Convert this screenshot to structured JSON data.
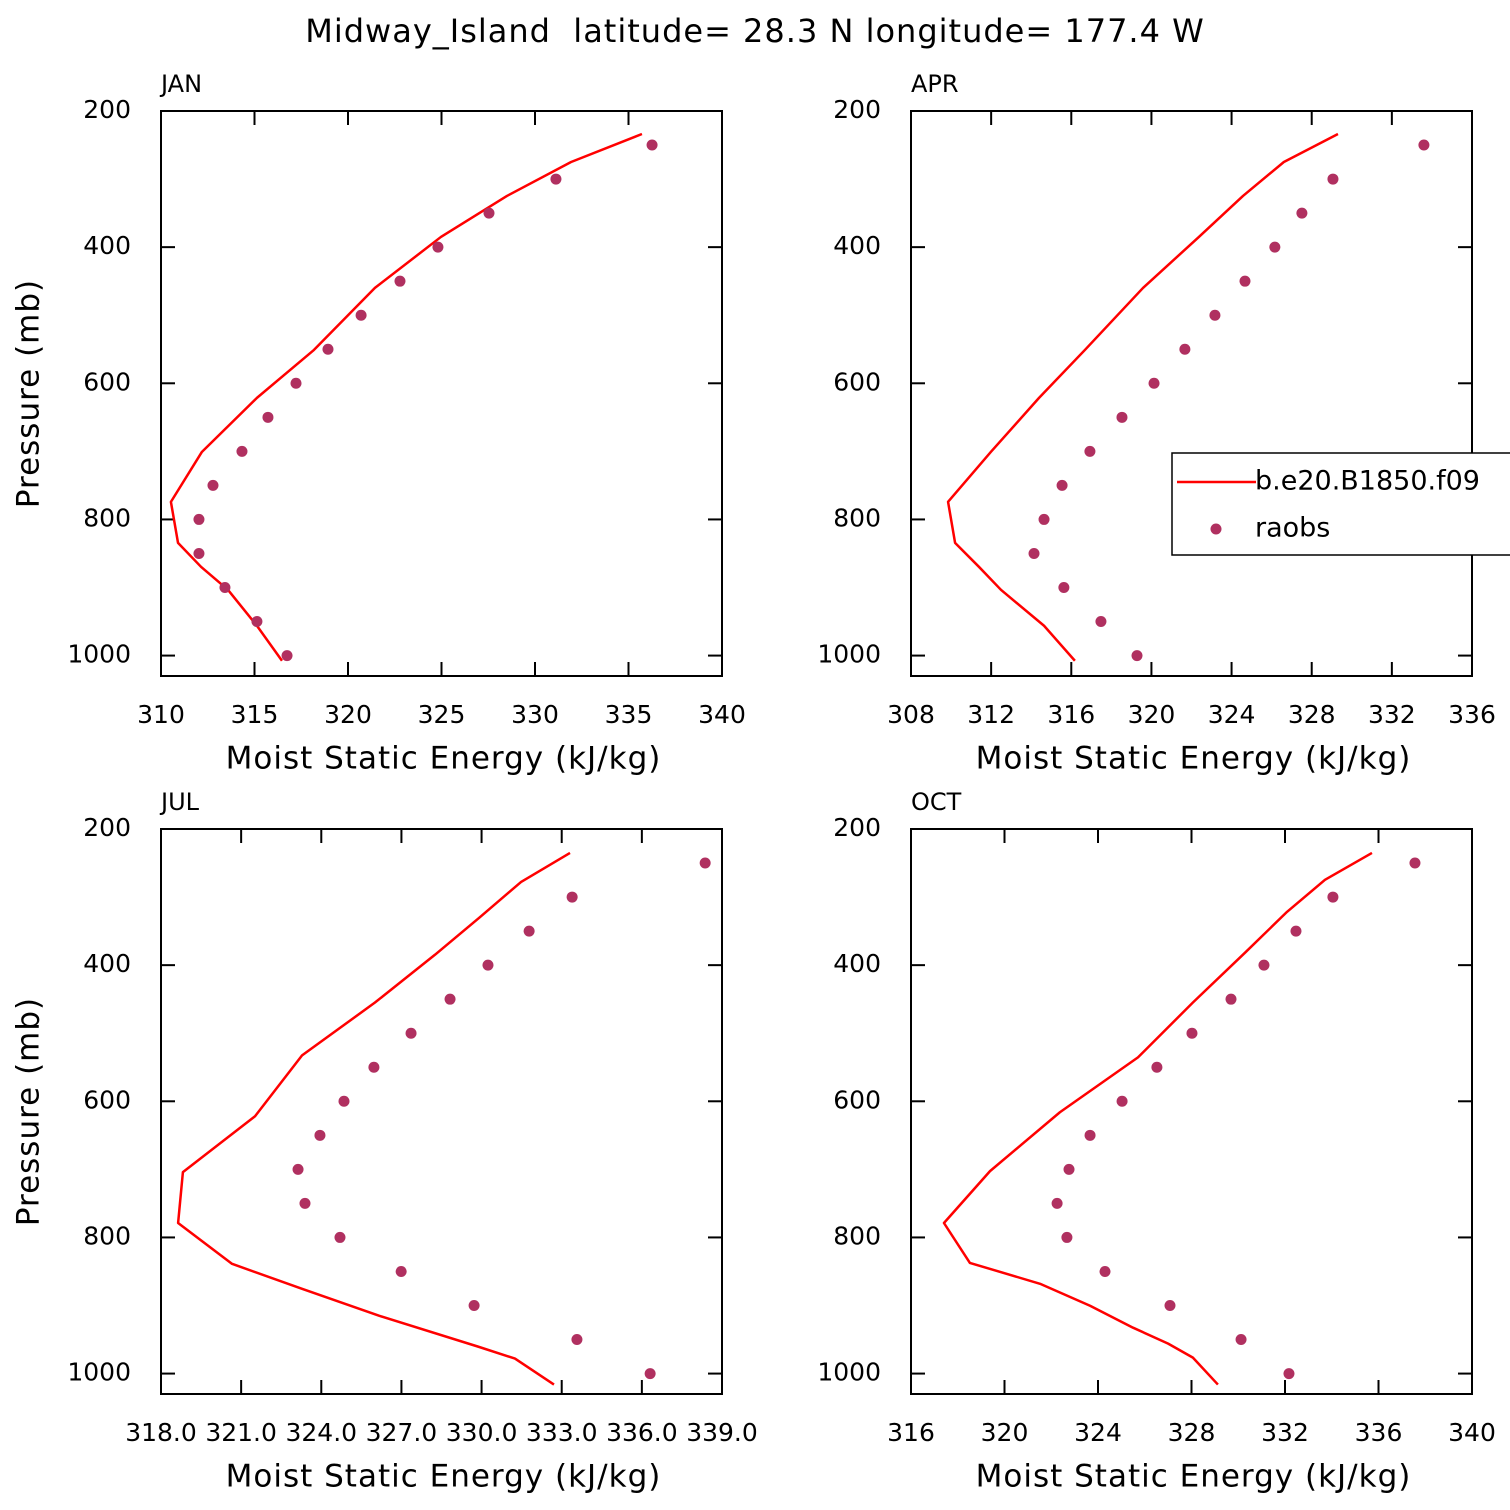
{
  "title": "Midway_Island  latitude= 28.3 N longitude= 177.4 W",
  "chart_data": [
    {
      "type": "profile",
      "subtitle": "JAN",
      "xlabel": "Moist Static Energy (kJ/kg)",
      "ylabel": "Pressure (mb)",
      "xlim": [
        310,
        340
      ],
      "xticks": [
        310,
        315,
        320,
        325,
        330,
        335,
        340
      ],
      "ylim": [
        200,
        1030
      ],
      "yticks": [
        200,
        400,
        600,
        800,
        1000
      ],
      "y_inverted": true,
      "series": [
        {
          "name": "b.e20.B1850.f09",
          "color": "#ff0000",
          "style": "line",
          "values": [
            335.72,
            331.93,
            328.5,
            324.97,
            321.44,
            318.18,
            315.13,
            312.19,
            310.53,
            310.91,
            312.14,
            313.58,
            315.13,
            316.47
          ],
          "pressure": [
            233.8,
            274.9,
            324.8,
            385.0,
            459.9,
            551.0,
            621.4,
            700.7,
            774.2,
            834.4,
            869.6,
            903.4,
            956.2,
            1007.6
          ]
        },
        {
          "name": "raobs",
          "color": "#b03060",
          "style": "dots",
          "values": [
            336.26,
            331.12,
            327.54,
            324.81,
            322.78,
            320.7,
            318.93,
            317.22,
            315.72,
            314.33,
            312.78,
            312.03,
            312.03,
            313.42,
            315.13,
            316.74
          ],
          "pressure": [
            250,
            300,
            350,
            400,
            450,
            500,
            550,
            600,
            650,
            700,
            750,
            800,
            850,
            900,
            950,
            1000
          ]
        }
      ]
    },
    {
      "type": "profile",
      "subtitle": "APR",
      "xlabel": "Moist Static Energy (kJ/kg)",
      "legend": true,
      "xlim": [
        308,
        336
      ],
      "xticks": [
        308,
        312,
        316,
        320,
        324,
        328,
        332,
        336
      ],
      "ylim": [
        200,
        1030
      ],
      "yticks": [
        200,
        400,
        600,
        800,
        1000
      ],
      "y_inverted": true,
      "series": [
        {
          "name": "b.e20.B1850.f09",
          "color": "#ff0000",
          "style": "line",
          "values": [
            329.31,
            326.61,
            324.57,
            322.37,
            319.58,
            316.68,
            314.39,
            311.99,
            309.85,
            310.2,
            311.39,
            312.49,
            314.64,
            316.18
          ],
          "pressure": [
            233.8,
            274.9,
            324.8,
            385.0,
            459.9,
            551.0,
            621.4,
            700.7,
            774.2,
            834.4,
            869.6,
            903.4,
            956.2,
            1007.6
          ]
        },
        {
          "name": "raobs",
          "color": "#b03060",
          "style": "dots",
          "values": [
            333.6,
            329.06,
            327.51,
            326.16,
            324.67,
            323.17,
            321.67,
            320.13,
            318.53,
            316.93,
            315.54,
            314.64,
            314.14,
            315.63,
            317.48,
            319.28
          ],
          "pressure": [
            250,
            300,
            350,
            400,
            450,
            500,
            550,
            600,
            650,
            700,
            750,
            800,
            850,
            900,
            950,
            1000
          ]
        }
      ]
    },
    {
      "type": "profile",
      "subtitle": "JUL",
      "xlabel": "Moist Static Energy (kJ/kg)",
      "ylabel": "Pressure (mb)",
      "xlim": [
        318,
        339
      ],
      "xticks": [
        {
          "value": 318,
          "label": "318.0"
        },
        {
          "value": 321,
          "label": "321.0"
        },
        {
          "value": 324,
          "label": "324.0"
        },
        {
          "value": 327,
          "label": "327.0"
        },
        {
          "value": 330,
          "label": "330.0"
        },
        {
          "value": 333,
          "label": "333.0"
        },
        {
          "value": 336,
          "label": "336.0"
        },
        {
          "value": 339,
          "label": "339.0"
        }
      ],
      "ylim": [
        200,
        1030
      ],
      "yticks": [
        200,
        400,
        600,
        800,
        1000
      ],
      "y_inverted": true,
      "series": [
        {
          "name": "b.e20.B1850.f09",
          "color": "#ff0000",
          "style": "line",
          "values": [
            333.31,
            331.48,
            329.91,
            328.26,
            326.01,
            323.28,
            321.52,
            318.82,
            318.64,
            320.66,
            323.28,
            326.16,
            329.87,
            331.25,
            332.71
          ],
          "pressure": [
            235.2,
            277.7,
            330.5,
            384.6,
            454.9,
            532.6,
            622.0,
            704.0,
            778.8,
            838.8,
            875.5,
            915.0,
            960.4,
            978.0,
            1016.1
          ]
        },
        {
          "name": "raobs",
          "color": "#b03060",
          "style": "dots",
          "values": [
            338.37,
            333.39,
            331.78,
            330.24,
            328.82,
            327.36,
            325.97,
            324.85,
            323.95,
            323.13,
            323.39,
            324.7,
            326.99,
            329.72,
            333.57,
            336.31
          ],
          "pressure": [
            250,
            300,
            350,
            400,
            450,
            500,
            550,
            600,
            650,
            700,
            750,
            800,
            850,
            900,
            950,
            1000
          ]
        }
      ]
    },
    {
      "type": "profile",
      "subtitle": "OCT",
      "xlabel": "Moist Static Energy (kJ/kg)",
      "xlim": [
        316,
        340
      ],
      "xticks": [
        316,
        320,
        324,
        328,
        332,
        336,
        340
      ],
      "ylim": [
        200,
        1030
      ],
      "yticks": [
        200,
        400,
        600,
        800,
        1000
      ],
      "y_inverted": true,
      "series": [
        {
          "name": "b.e20.B1850.f09",
          "color": "#ff0000",
          "style": "line",
          "values": [
            335.72,
            333.71,
            332.09,
            330.29,
            328.06,
            325.71,
            322.37,
            319.38,
            317.41,
            318.52,
            321.52,
            323.66,
            325.5,
            327.0,
            328.06,
            329.13
          ],
          "pressure": [
            235.2,
            274.7,
            321.6,
            381.7,
            454.9,
            535.5,
            616.1,
            702.6,
            778.8,
            837.4,
            868.1,
            900.4,
            932.6,
            956.0,
            976.6,
            1016.1
          ]
        },
        {
          "name": "raobs",
          "color": "#b03060",
          "style": "dots",
          "values": [
            337.56,
            334.05,
            332.47,
            331.1,
            329.69,
            328.02,
            326.52,
            325.03,
            323.66,
            322.76,
            322.25,
            322.67,
            324.3,
            327.08,
            330.12,
            332.17
          ],
          "pressure": [
            250,
            300,
            350,
            400,
            450,
            500,
            550,
            600,
            650,
            700,
            750,
            800,
            850,
            900,
            950,
            1000
          ]
        }
      ]
    }
  ]
}
